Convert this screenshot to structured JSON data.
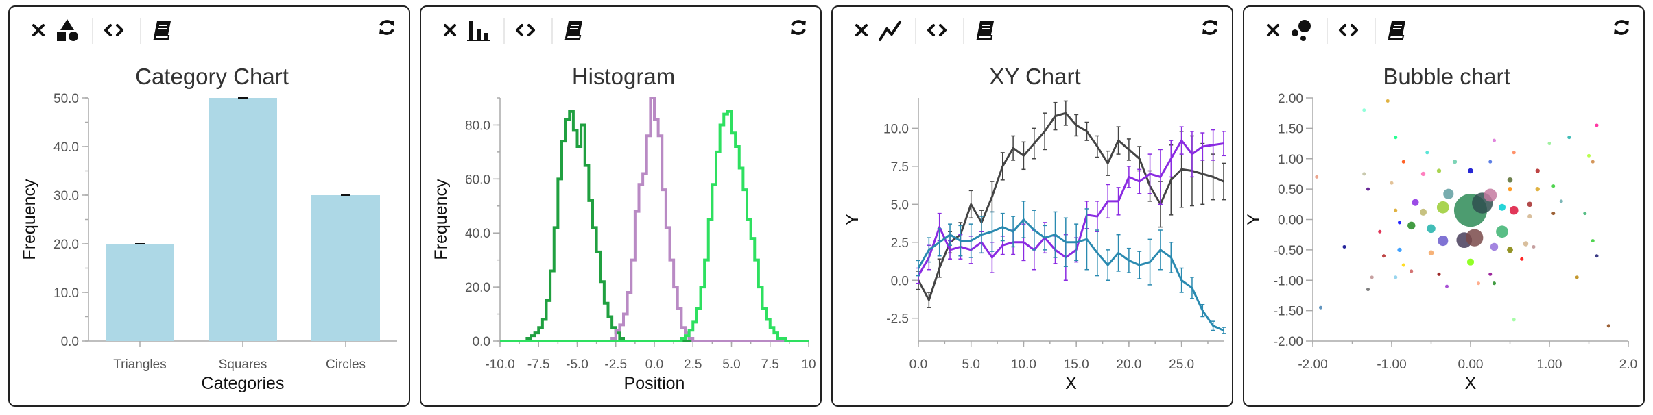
{
  "colors": {
    "bar_fill": "#add8e6",
    "error_bar": "#111111",
    "hist_series": [
      "#20a040",
      "#b98ac4",
      "#2ee060"
    ],
    "xy_series": [
      "#444444",
      "#8a2be2",
      "#2a8ab0"
    ]
  },
  "panels": [
    {
      "title": "Category Chart",
      "type_icon": "shapes-icon",
      "toolbar": [
        "close-icon",
        "shapes-icon",
        "code-icon",
        "book-icon",
        "refresh-icon"
      ]
    },
    {
      "title": "Histogram",
      "type_icon": "bar-chart-icon",
      "toolbar": [
        "close-icon",
        "bar-chart-icon",
        "code-icon",
        "book-icon",
        "refresh-icon"
      ]
    },
    {
      "title": "XY Chart",
      "type_icon": "line-chart-icon",
      "toolbar": [
        "close-icon",
        "line-chart-icon",
        "code-icon",
        "book-icon",
        "refresh-icon"
      ]
    },
    {
      "title": "Bubble chart",
      "type_icon": "bubble-icon",
      "toolbar": [
        "close-icon",
        "bubble-icon",
        "code-icon",
        "book-icon",
        "refresh-icon"
      ]
    }
  ],
  "chart_data": [
    {
      "type": "bar",
      "title": "Category Chart",
      "categories": [
        "Triangles",
        "Squares",
        "Circles"
      ],
      "values": [
        20,
        50,
        30
      ],
      "xlabel": "Categories",
      "ylabel": "Frequency",
      "ylim": [
        0,
        50
      ],
      "yticks": [
        "0.0",
        "10.0",
        "20.0",
        "30.0",
        "40.0",
        "50.0"
      ],
      "error_bars": true,
      "grid": false
    },
    {
      "type": "line",
      "subtype": "step-histogram",
      "title": "Histogram",
      "xlabel": "Position",
      "ylabel": "Frequency",
      "xlim": [
        -10,
        10
      ],
      "ylim": [
        0,
        90
      ],
      "xticks": [
        "-10.0",
        "-7.5",
        "-5.0",
        "-2.5",
        "0.0",
        "2.5",
        "5.0",
        "7.5",
        "10"
      ],
      "yticks": [
        "0.0",
        "20.0",
        "40.0",
        "60.0",
        "80.0"
      ],
      "series": [
        {
          "center": -5,
          "peak": 85,
          "x": [
            -8.25,
            -8.0,
            -7.75,
            -7.5,
            -7.25,
            -7.0,
            -6.75,
            -6.5,
            -6.25,
            -6.0,
            -5.75,
            -5.5,
            -5.25,
            -5.0,
            -4.75,
            -4.5,
            -4.25,
            -4.0,
            -3.75,
            -3.5,
            -3.25,
            -3.0,
            -2.75,
            -2.5,
            -2.25,
            -2.0
          ],
          "values": [
            1,
            2,
            3,
            5,
            8,
            15,
            26,
            42,
            60,
            74,
            82,
            85,
            78,
            72,
            80,
            65,
            52,
            42,
            33,
            22,
            14,
            9,
            5,
            3,
            1,
            0
          ]
        },
        {
          "center": 0,
          "peak": 90,
          "x": [
            -3.0,
            -2.75,
            -2.5,
            -2.25,
            -2.0,
            -1.75,
            -1.5,
            -1.25,
            -1.0,
            -0.75,
            -0.5,
            -0.25,
            0.0,
            0.25,
            0.5,
            0.75,
            1.0,
            1.25,
            1.5,
            1.75,
            2.0,
            2.25,
            2.5
          ],
          "values": [
            0,
            1,
            4,
            6,
            10,
            18,
            30,
            48,
            58,
            62,
            76,
            90,
            82,
            76,
            56,
            42,
            30,
            20,
            12,
            5,
            3,
            1,
            0
          ]
        },
        {
          "center": 5,
          "peak": 85,
          "x": [
            1.5,
            1.75,
            2.0,
            2.25,
            2.5,
            2.75,
            3.0,
            3.25,
            3.5,
            3.75,
            4.0,
            4.25,
            4.5,
            4.75,
            5.0,
            5.25,
            5.5,
            5.75,
            6.0,
            6.25,
            6.5,
            6.75,
            7.0,
            7.25,
            7.5,
            7.75,
            8.0,
            8.25,
            8.5
          ],
          "values": [
            0,
            1,
            2,
            4,
            7,
            12,
            20,
            30,
            45,
            58,
            70,
            80,
            84,
            85,
            77,
            72,
            64,
            56,
            45,
            38,
            30,
            20,
            12,
            8,
            5,
            3,
            1,
            1,
            0
          ]
        }
      ],
      "grid": false
    },
    {
      "type": "line",
      "title": "XY Chart",
      "xlabel": "X",
      "ylabel": "Y",
      "xlim": [
        0,
        29
      ],
      "ylim": [
        -4,
        12
      ],
      "xticks": [
        "0.0",
        "5.0",
        "10.0",
        "15.0",
        "20.0",
        "25.0"
      ],
      "yticks": [
        "-2.5",
        "0.0",
        "2.5",
        "5.0",
        "7.5",
        "10.0"
      ],
      "x": [
        0,
        1,
        2,
        3,
        4,
        5,
        6,
        7,
        8,
        9,
        10,
        11,
        12,
        13,
        14,
        15,
        16,
        17,
        18,
        19,
        20,
        21,
        22,
        23,
        24,
        25,
        26,
        27,
        28,
        29
      ],
      "series": [
        {
          "values": [
            0,
            -1.3,
            0.8,
            2.5,
            3.0,
            5.0,
            3.8,
            5.5,
            7.5,
            8.7,
            8.2,
            9.0,
            9.8,
            10.8,
            11.0,
            10.2,
            9.8,
            8.8,
            7.7,
            9.2,
            8.6,
            8.0,
            6.2,
            5.0,
            6.6,
            7.3,
            7.2,
            7.0,
            6.8,
            6.5
          ],
          "error": [
            0.6,
            0.5,
            0.6,
            0.7,
            0.8,
            0.9,
            0.8,
            1.0,
            0.9,
            0.8,
            0.9,
            1.0,
            1.2,
            0.9,
            0.8,
            0.7,
            0.6,
            0.7,
            0.8,
            0.9,
            0.7,
            0.8,
            1.0,
            1.5,
            2.3,
            2.5,
            2.3,
            2.0,
            1.5,
            1.2
          ]
        },
        {
          "values": [
            0.3,
            1.5,
            3.5,
            2.0,
            2.2,
            2.0,
            2.5,
            1.5,
            2.3,
            2.5,
            2.5,
            2.0,
            2.8,
            2.0,
            1.5,
            2.0,
            4.3,
            4.2,
            5.2,
            5.2,
            6.8,
            6.5,
            7.0,
            6.8,
            8.0,
            9.2,
            8.3,
            8.8,
            8.9,
            9.0
          ],
          "error": [
            0.5,
            0.8,
            0.9,
            0.6,
            0.8,
            0.9,
            0.7,
            1.0,
            0.6,
            0.8,
            1.2,
            1.3,
            1.0,
            0.9,
            1.5,
            0.8,
            0.9,
            1.0,
            1.1,
            0.9,
            0.7,
            0.8,
            1.3,
            1.8,
            1.2,
            0.9,
            1.5,
            0.9,
            1.0,
            0.8
          ]
        },
        {
          "values": [
            0.8,
            2.0,
            2.5,
            3.0,
            2.6,
            2.6,
            3.0,
            3.2,
            3.5,
            3.2,
            4.0,
            3.3,
            2.8,
            3.0,
            2.5,
            2.5,
            2.7,
            1.8,
            1.0,
            1.8,
            1.3,
            1.0,
            1.2,
            2.0,
            1.5,
            0.0,
            -0.5,
            -2.0,
            -3.0,
            -3.3
          ],
          "error": [
            0.5,
            0.8,
            0.9,
            0.7,
            1.0,
            1.1,
            1.2,
            1.3,
            0.9,
            1.0,
            1.2,
            1.3,
            0.8,
            1.5,
            1.6,
            1.2,
            2.0,
            1.5,
            1.0,
            1.2,
            0.8,
            0.9,
            1.5,
            1.3,
            1.0,
            0.8,
            0.7,
            0.4,
            0.3,
            0.2
          ]
        }
      ],
      "grid": false
    },
    {
      "type": "scatter",
      "subtype": "bubble",
      "title": "Bubble chart",
      "xlabel": "X",
      "ylabel": "Y",
      "xlim": [
        -2,
        2
      ],
      "ylim": [
        -2,
        2
      ],
      "xticks": [
        "-2.00",
        "-1.00",
        "0.00",
        "1.00",
        "2.0"
      ],
      "yticks": [
        "-2.00",
        "-1.50",
        "-1.00",
        "-0.50",
        "0.00",
        "0.50",
        "1.00",
        "1.50",
        "2.00"
      ],
      "points": [
        {
          "x": 0.0,
          "y": 0.15,
          "r": 0.38,
          "color": "#2e8b57"
        },
        {
          "x": 0.15,
          "y": 0.27,
          "r": 0.24,
          "color": "#2f4f4f"
        },
        {
          "x": -0.08,
          "y": -0.34,
          "r": 0.18,
          "color": "#483d5b"
        },
        {
          "x": 0.05,
          "y": -0.3,
          "r": 0.2,
          "color": "#7a4a4a"
        },
        {
          "x": 0.4,
          "y": -0.2,
          "r": 0.14,
          "color": "#3cb371"
        },
        {
          "x": -0.35,
          "y": 0.2,
          "r": 0.14,
          "color": "#9acd32"
        },
        {
          "x": 0.25,
          "y": 0.4,
          "r": 0.15,
          "color": "#c47aa0"
        },
        {
          "x": -0.28,
          "y": 0.42,
          "r": 0.12,
          "color": "#5f9ea0"
        },
        {
          "x": -0.5,
          "y": -0.15,
          "r": 0.1,
          "color": "#20b2aa"
        },
        {
          "x": -0.35,
          "y": -0.35,
          "r": 0.12,
          "color": "#6a5acd"
        },
        {
          "x": 0.55,
          "y": 0.15,
          "r": 0.1,
          "color": "#dc143c"
        },
        {
          "x": -0.7,
          "y": 0.28,
          "r": 0.08,
          "color": "#8a2be2"
        },
        {
          "x": -0.75,
          "y": -0.1,
          "r": 0.09,
          "color": "#228b22"
        },
        {
          "x": -0.6,
          "y": 0.12,
          "r": 0.08,
          "color": "#bdb76b"
        },
        {
          "x": 0.3,
          "y": -0.45,
          "r": 0.09,
          "color": "#9370db"
        },
        {
          "x": 0.5,
          "y": -0.5,
          "r": 0.07,
          "color": "#808000"
        },
        {
          "x": -0.5,
          "y": -0.55,
          "r": 0.06,
          "color": "#f4a460"
        },
        {
          "x": 0.7,
          "y": -0.4,
          "r": 0.06,
          "color": "#d2b48c"
        },
        {
          "x": 0.0,
          "y": -0.7,
          "r": 0.08,
          "color": "#7fff00"
        },
        {
          "x": -0.6,
          "y": 0.75,
          "r": 0.05,
          "color": "#ff69b4"
        },
        {
          "x": 0.5,
          "y": 0.5,
          "r": 0.05,
          "color": "#ff8c00"
        },
        {
          "x": 0.0,
          "y": 0.8,
          "r": 0.06,
          "color": "#0000cd"
        },
        {
          "x": 0.5,
          "y": 0.65,
          "r": 0.06,
          "color": "#556b2f"
        },
        {
          "x": 0.85,
          "y": 0.8,
          "r": 0.05,
          "color": "#b22222"
        },
        {
          "x": -0.4,
          "y": 0.8,
          "r": 0.05,
          "color": "#9acd32"
        },
        {
          "x": -0.2,
          "y": 0.95,
          "r": 0.05,
          "color": "#66cdaa"
        },
        {
          "x": 0.25,
          "y": 0.95,
          "r": 0.04,
          "color": "#4169e1"
        },
        {
          "x": -0.85,
          "y": 0.95,
          "r": 0.04,
          "color": "#ff4500"
        },
        {
          "x": -1.0,
          "y": 0.6,
          "r": 0.04,
          "color": "#deb887"
        },
        {
          "x": 0.85,
          "y": 0.5,
          "r": 0.05,
          "color": "#daa520"
        },
        {
          "x": 0.75,
          "y": 0.25,
          "r": 0.06,
          "color": "#a52a2a"
        },
        {
          "x": 0.75,
          "y": 0.05,
          "r": 0.05,
          "color": "#d2b48c"
        },
        {
          "x": 1.15,
          "y": 0.3,
          "r": 0.04,
          "color": "#66aaaa"
        },
        {
          "x": 1.05,
          "y": 0.1,
          "r": 0.04,
          "color": "#8b4513"
        },
        {
          "x": 1.05,
          "y": 0.55,
          "r": 0.04,
          "color": "#32cd32"
        },
        {
          "x": -0.95,
          "y": 0.15,
          "r": 0.04,
          "color": "#daa520"
        },
        {
          "x": -0.9,
          "y": -0.05,
          "r": 0.04,
          "color": "#0000ff"
        },
        {
          "x": -1.15,
          "y": -0.2,
          "r": 0.04,
          "color": "#dc143c"
        },
        {
          "x": -0.9,
          "y": -0.5,
          "r": 0.05,
          "color": "#1e90ff"
        },
        {
          "x": -1.1,
          "y": -0.6,
          "r": 0.04,
          "color": "#b22222"
        },
        {
          "x": -0.85,
          "y": -0.75,
          "r": 0.04,
          "color": "#ffd700"
        },
        {
          "x": -0.95,
          "y": -0.95,
          "r": 0.04,
          "color": "#87ceeb"
        },
        {
          "x": -0.75,
          "y": -0.85,
          "r": 0.04,
          "color": "#cd5c5c"
        },
        {
          "x": -0.4,
          "y": -0.9,
          "r": 0.04,
          "color": "#8b0000"
        },
        {
          "x": 0.25,
          "y": -0.9,
          "r": 0.04,
          "color": "#8b008b"
        },
        {
          "x": 0.3,
          "y": -1.05,
          "r": 0.04,
          "color": "#228b22"
        },
        {
          "x": 0.65,
          "y": -0.65,
          "r": 0.04,
          "color": "#ff0000"
        },
        {
          "x": 0.8,
          "y": -0.45,
          "r": 0.03,
          "color": "#bc8f8f"
        },
        {
          "x": -0.3,
          "y": -1.1,
          "r": 0.03,
          "color": "#9932cc"
        },
        {
          "x": 0.1,
          "y": -1.05,
          "r": 0.03,
          "color": "#ffa07a"
        },
        {
          "x": 1.35,
          "y": -0.95,
          "r": 0.03,
          "color": "#b8860b"
        },
        {
          "x": 1.6,
          "y": -0.6,
          "r": 0.03,
          "color": "#191970"
        },
        {
          "x": 1.55,
          "y": -0.35,
          "r": 0.03,
          "color": "#32cd32"
        },
        {
          "x": 1.45,
          "y": 0.1,
          "r": 0.03,
          "color": "#3cb371"
        },
        {
          "x": 1.25,
          "y": 1.35,
          "r": 0.03,
          "color": "#20b2aa"
        },
        {
          "x": 1.0,
          "y": 1.25,
          "r": 0.03,
          "color": "#90ee90"
        },
        {
          "x": 1.5,
          "y": 1.05,
          "r": 0.03,
          "color": "#adff2f"
        },
        {
          "x": 1.6,
          "y": 1.55,
          "r": 0.03,
          "color": "#ff1493"
        },
        {
          "x": -1.3,
          "y": -1.15,
          "r": 0.03,
          "color": "#696969"
        },
        {
          "x": -1.25,
          "y": -0.95,
          "r": 0.03,
          "color": "#bc8f8f"
        },
        {
          "x": -1.6,
          "y": -0.45,
          "r": 0.03,
          "color": "#00008b"
        },
        {
          "x": -1.9,
          "y": -1.45,
          "r": 0.03,
          "color": "#4682b4"
        },
        {
          "x": -1.95,
          "y": 0.7,
          "r": 0.03,
          "color": "#e9967a"
        },
        {
          "x": -1.35,
          "y": 1.8,
          "r": 0.03,
          "color": "#7fffd4"
        },
        {
          "x": -1.05,
          "y": 1.95,
          "r": 0.03,
          "color": "#daa520"
        },
        {
          "x": 1.75,
          "y": -1.75,
          "r": 0.03,
          "color": "#8b4513"
        },
        {
          "x": 0.55,
          "y": -1.65,
          "r": 0.03,
          "color": "#98fb98"
        },
        {
          "x": -1.3,
          "y": 0.5,
          "r": 0.03,
          "color": "#4b0082"
        },
        {
          "x": -1.35,
          "y": 0.75,
          "r": 0.04,
          "color": "#c0c0a0"
        },
        {
          "x": -0.95,
          "y": 1.35,
          "r": 0.03,
          "color": "#00ff7f"
        },
        {
          "x": 0.3,
          "y": 1.3,
          "r": 0.04,
          "color": "#da70d6"
        },
        {
          "x": 0.55,
          "y": 1.1,
          "r": 0.04,
          "color": "#ff7f50"
        },
        {
          "x": -0.55,
          "y": 1.1,
          "r": 0.04,
          "color": "#40e0d0"
        },
        {
          "x": 1.55,
          "y": 0.95,
          "r": 0.02,
          "color": "#cd853f"
        },
        {
          "x": 0.4,
          "y": 0.2,
          "r": 0.08,
          "color": "#00ced1"
        }
      ],
      "grid": false
    }
  ]
}
